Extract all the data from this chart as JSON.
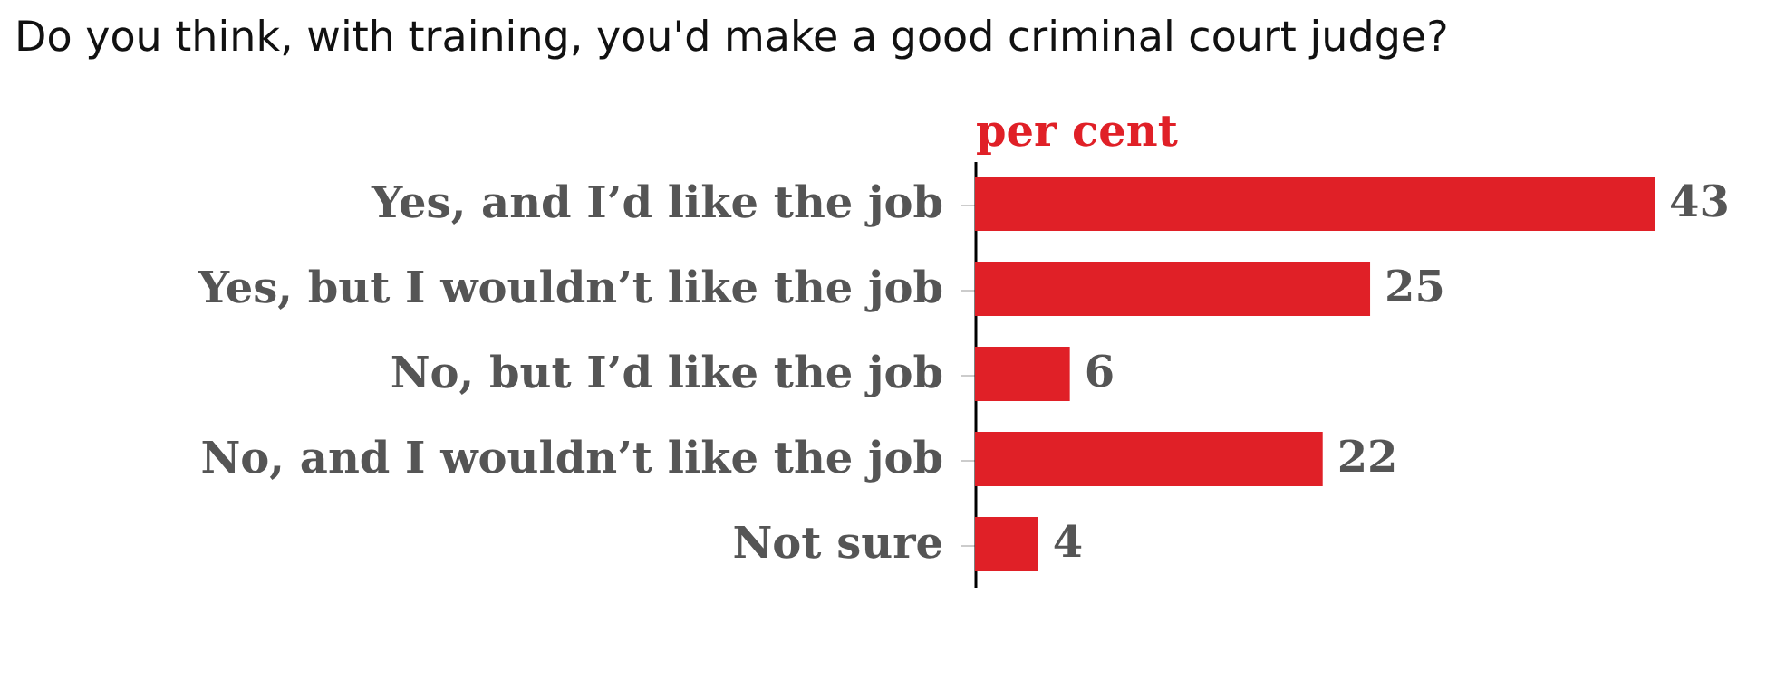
{
  "chart_data": {
    "type": "bar",
    "orientation": "horizontal",
    "title": "Do you think, with training, you'd make a good criminal court judge?",
    "xlabel": "per cent",
    "categories": [
      "Yes, and I’d like the job",
      "Yes, but I wouldn’t like the job",
      "No, but I’d like the job",
      "No, and I wouldn’t like the job",
      "Not sure"
    ],
    "series": [
      {
        "color": "#e02027",
        "values": [
          43,
          25,
          6,
          22,
          4
        ]
      }
    ],
    "data_labels": true
  }
}
